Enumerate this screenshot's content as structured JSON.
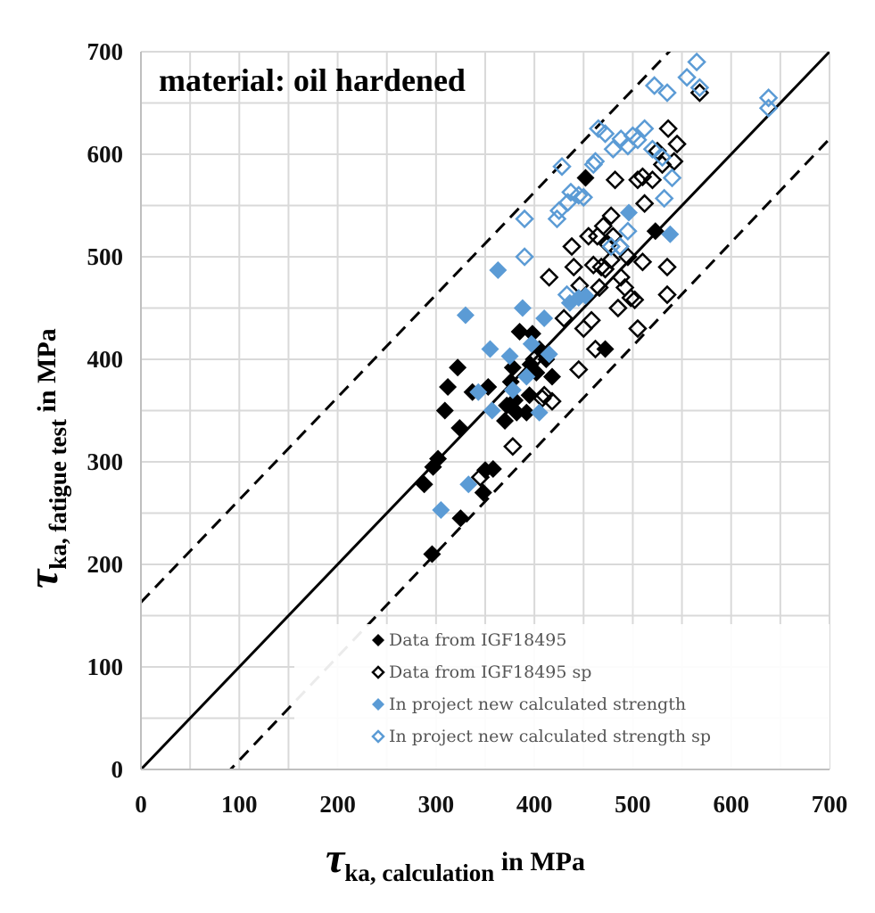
{
  "chart_data": {
    "type": "scatter",
    "title": "material: oil hardened",
    "xlabel": {
      "symbol": "τ",
      "subscript": "ka, calculation",
      "suffix": " in MPa"
    },
    "ylabel": {
      "symbol": "τ",
      "subscript": "ka, fatigue test",
      "suffix": " in MPa"
    },
    "xlim": [
      0,
      700
    ],
    "ylim": [
      0,
      700
    ],
    "xticks": [
      0,
      100,
      200,
      300,
      400,
      500,
      600,
      700
    ],
    "yticks": [
      0,
      100,
      200,
      300,
      400,
      500,
      600,
      700
    ],
    "grid": true,
    "grid_step": 50,
    "legend_position": "bottom-right",
    "reference_lines": [
      {
        "kind": "solid",
        "slope": 1,
        "intercept": 0
      },
      {
        "kind": "dashed",
        "slope": 1,
        "intercept": 163
      },
      {
        "kind": "dashed",
        "slope": 1.01,
        "intercept": -92
      }
    ],
    "series": [
      {
        "name": "Data from IGF18495",
        "marker": "diamond-filled",
        "color": "#000000",
        "points": [
          [
            288,
            278
          ],
          [
            297,
            295
          ],
          [
            302,
            303
          ],
          [
            296,
            210
          ],
          [
            325,
            245
          ],
          [
            324,
            333
          ],
          [
            309,
            350
          ],
          [
            312,
            373
          ],
          [
            322,
            392
          ],
          [
            337,
            368
          ],
          [
            353,
            373
          ],
          [
            350,
            292
          ],
          [
            348,
            270
          ],
          [
            358,
            293
          ],
          [
            370,
            340
          ],
          [
            372,
            355
          ],
          [
            376,
            378
          ],
          [
            378,
            392
          ],
          [
            382,
            348
          ],
          [
            385,
            427
          ],
          [
            392,
            348
          ],
          [
            398,
            425
          ],
          [
            396,
            395
          ],
          [
            402,
            387
          ],
          [
            405,
            410
          ],
          [
            418,
            383
          ],
          [
            412,
            400
          ],
          [
            452,
            577
          ],
          [
            472,
            410
          ],
          [
            523,
            525
          ],
          [
            395,
            365
          ],
          [
            380,
            360
          ]
        ]
      },
      {
        "name": "Data from IGF18495 sp",
        "marker": "diamond-open",
        "color": "#000000",
        "points": [
          [
            378,
            315
          ],
          [
            345,
            285
          ],
          [
            408,
            362
          ],
          [
            418,
            359
          ],
          [
            400,
            400
          ],
          [
            410,
            365
          ],
          [
            430,
            440
          ],
          [
            438,
            510
          ],
          [
            440,
            490
          ],
          [
            446,
            472
          ],
          [
            445,
            390
          ],
          [
            450,
            430
          ],
          [
            458,
            438
          ],
          [
            462,
            410
          ],
          [
            466,
            470
          ],
          [
            460,
            492
          ],
          [
            464,
            520
          ],
          [
            470,
            530
          ],
          [
            478,
            540
          ],
          [
            485,
            450
          ],
          [
            488,
            480
          ],
          [
            492,
            470
          ],
          [
            495,
            500
          ],
          [
            498,
            460
          ],
          [
            502,
            458
          ],
          [
            505,
            430
          ],
          [
            510,
            495
          ],
          [
            482,
            575
          ],
          [
            505,
            575
          ],
          [
            510,
            578
          ],
          [
            512,
            552
          ],
          [
            520,
            575
          ],
          [
            530,
            590
          ],
          [
            525,
            603
          ],
          [
            536,
            625
          ],
          [
            545,
            610
          ],
          [
            542,
            593
          ],
          [
            535,
            490
          ],
          [
            535,
            463
          ],
          [
            568,
            660
          ],
          [
            472,
            488
          ],
          [
            480,
            520
          ],
          [
            415,
            480
          ],
          [
            455,
            520
          ],
          [
            468,
            490
          ],
          [
            475,
            512
          ],
          [
            478,
            497
          ],
          [
            487,
            510
          ]
        ]
      },
      {
        "name": "In project new calculated strength",
        "marker": "diamond-filled",
        "color": "#5b9bd5",
        "points": [
          [
            305,
            253
          ],
          [
            333,
            278
          ],
          [
            330,
            443
          ],
          [
            343,
            368
          ],
          [
            355,
            410
          ],
          [
            357,
            350
          ],
          [
            363,
            487
          ],
          [
            375,
            403
          ],
          [
            378,
            370
          ],
          [
            388,
            450
          ],
          [
            392,
            383
          ],
          [
            397,
            415
          ],
          [
            405,
            348
          ],
          [
            410,
            440
          ],
          [
            415,
            405
          ],
          [
            436,
            455
          ],
          [
            445,
            460
          ],
          [
            452,
            462
          ],
          [
            496,
            543
          ],
          [
            538,
            522
          ]
        ]
      },
      {
        "name": "In project new calculated strength sp",
        "marker": "diamond-open",
        "color": "#5b9bd5",
        "points": [
          [
            390,
            500
          ],
          [
            390,
            537
          ],
          [
            428,
            588
          ],
          [
            433,
            463
          ],
          [
            434,
            553
          ],
          [
            437,
            563
          ],
          [
            445,
            560
          ],
          [
            450,
            558
          ],
          [
            460,
            590
          ],
          [
            465,
            625
          ],
          [
            462,
            593
          ],
          [
            472,
            620
          ],
          [
            478,
            510
          ],
          [
            480,
            605
          ],
          [
            488,
            615
          ],
          [
            495,
            608
          ],
          [
            500,
            618
          ],
          [
            505,
            614
          ],
          [
            512,
            625
          ],
          [
            520,
            605
          ],
          [
            522,
            667
          ],
          [
            532,
            557
          ],
          [
            535,
            660
          ],
          [
            540,
            577
          ],
          [
            530,
            597
          ],
          [
            555,
            675
          ],
          [
            565,
            690
          ],
          [
            568,
            665
          ],
          [
            638,
            645
          ],
          [
            638,
            655
          ],
          [
            423,
            537
          ],
          [
            425,
            545
          ],
          [
            487,
            510
          ],
          [
            495,
            525
          ]
        ]
      }
    ]
  }
}
